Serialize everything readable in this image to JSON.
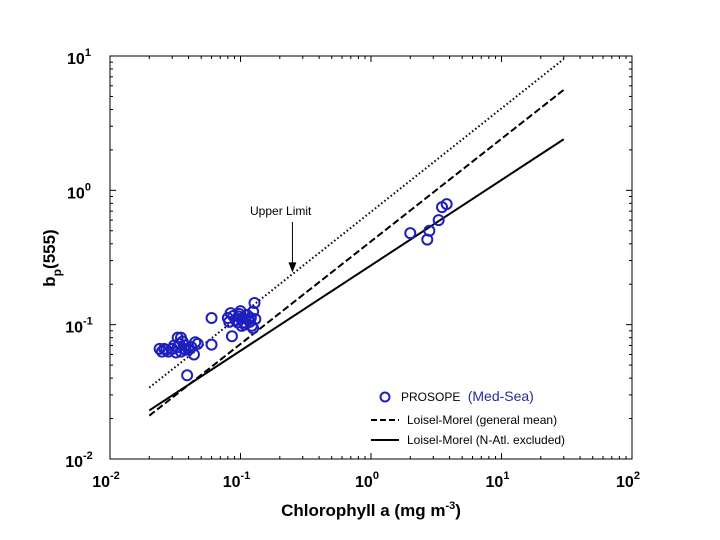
{
  "chart_data": {
    "type": "scatter",
    "title": "",
    "xlabel": {
      "main": "Chlorophyll a (mg m",
      "sup": "-3",
      "close": ")"
    },
    "ylabel": {
      "main": "b",
      "sub": "p",
      "rest": "(555)"
    },
    "xscale": "log",
    "yscale": "log",
    "xlim": [
      0.01,
      100
    ],
    "ylim": [
      0.01,
      10
    ],
    "x_ticks": [
      {
        "value": 0.01,
        "base": "10",
        "exp": "-2"
      },
      {
        "value": 0.1,
        "base": "10",
        "exp": "-1"
      },
      {
        "value": 1,
        "base": "10",
        "exp": "0"
      },
      {
        "value": 10,
        "base": "10",
        "exp": "1"
      },
      {
        "value": 100,
        "base": "10",
        "exp": "2"
      }
    ],
    "y_ticks": [
      {
        "value": 0.01,
        "base": "10",
        "exp": "-2"
      },
      {
        "value": 0.1,
        "base": "10",
        "exp": "-1"
      },
      {
        "value": 1,
        "base": "10",
        "exp": "0"
      },
      {
        "value": 10,
        "base": "10",
        "exp": "1"
      }
    ],
    "series": [
      {
        "name": "PROSOPE",
        "name_suffix": "(Med-Sea)",
        "kind": "scatter",
        "color": "#1f1fbf",
        "points": [
          [
            0.024,
            0.066
          ],
          [
            0.025,
            0.063
          ],
          [
            0.026,
            0.066
          ],
          [
            0.027,
            0.065
          ],
          [
            0.028,
            0.063
          ],
          [
            0.03,
            0.066
          ],
          [
            0.031,
            0.07
          ],
          [
            0.032,
            0.062
          ],
          [
            0.033,
            0.068
          ],
          [
            0.033,
            0.08
          ],
          [
            0.034,
            0.072
          ],
          [
            0.035,
            0.063
          ],
          [
            0.035,
            0.08
          ],
          [
            0.036,
            0.075
          ],
          [
            0.037,
            0.066
          ],
          [
            0.038,
            0.065
          ],
          [
            0.038,
            0.07
          ],
          [
            0.039,
            0.042
          ],
          [
            0.04,
            0.065
          ],
          [
            0.042,
            0.068
          ],
          [
            0.044,
            0.06
          ],
          [
            0.045,
            0.074
          ],
          [
            0.047,
            0.072
          ],
          [
            0.06,
            0.112
          ],
          [
            0.06,
            0.071
          ],
          [
            0.08,
            0.112
          ],
          [
            0.082,
            0.105
          ],
          [
            0.084,
            0.122
          ],
          [
            0.086,
            0.082
          ],
          [
            0.088,
            0.116
          ],
          [
            0.092,
            0.108
          ],
          [
            0.095,
            0.104
          ],
          [
            0.097,
            0.115
          ],
          [
            0.098,
            0.12
          ],
          [
            0.1,
            0.126
          ],
          [
            0.102,
            0.098
          ],
          [
            0.104,
            0.112
          ],
          [
            0.106,
            0.104
          ],
          [
            0.108,
            0.1
          ],
          [
            0.112,
            0.118
          ],
          [
            0.115,
            0.108
          ],
          [
            0.118,
            0.105
          ],
          [
            0.12,
            0.112
          ],
          [
            0.122,
            0.098
          ],
          [
            0.125,
            0.094
          ],
          [
            0.125,
            0.125
          ],
          [
            0.128,
            0.145
          ],
          [
            0.13,
            0.11
          ],
          [
            2.0,
            0.48
          ],
          [
            2.7,
            0.43
          ],
          [
            2.8,
            0.5
          ],
          [
            3.3,
            0.6
          ],
          [
            3.5,
            0.75
          ],
          [
            3.8,
            0.79
          ]
        ]
      },
      {
        "name": "Loisel-Morel (general mean)",
        "kind": "line",
        "style": "dashed",
        "x": [
          0.02,
          30
        ],
        "y": [
          0.021,
          5.6
        ]
      },
      {
        "name": "Loisel-Morel (N-Atl. excluded)",
        "kind": "line",
        "style": "solid",
        "x": [
          0.02,
          30
        ],
        "y": [
          0.023,
          2.4
        ]
      },
      {
        "name": "Upper Limit",
        "kind": "line",
        "style": "dotted",
        "x": [
          0.02,
          30
        ],
        "y": [
          0.034,
          9.5
        ]
      }
    ],
    "annotations": [
      {
        "text": "Upper Limit",
        "arrow_to": [
          0.25,
          0.245
        ]
      }
    ],
    "legend": {
      "position": "bottom-right",
      "entries": [
        "PROSOPE",
        "Loisel-Morel (general mean)",
        "Loisel-Morel (N-Atl. excluded)"
      ]
    }
  }
}
